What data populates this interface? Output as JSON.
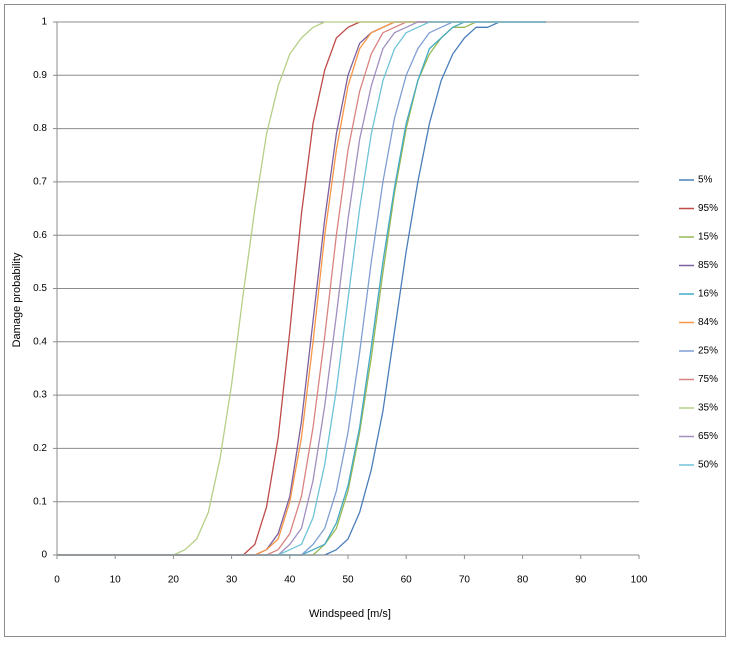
{
  "chart_data": {
    "type": "line",
    "x_label": "Windspeed [m/s]",
    "y_label": "Damage probability",
    "x": [
      0,
      2,
      4,
      6,
      8,
      10,
      12,
      14,
      16,
      18,
      20,
      22,
      24,
      26,
      28,
      30,
      32,
      34,
      36,
      38,
      40,
      42,
      44,
      46,
      48,
      50,
      52,
      54,
      56,
      58,
      60,
      62,
      64,
      66,
      68,
      70,
      72,
      74,
      76,
      78,
      80,
      82,
      84
    ],
    "xlim": [
      0,
      100
    ],
    "xticks": [
      0,
      10,
      20,
      30,
      40,
      50,
      60,
      70,
      80,
      90,
      100
    ],
    "ylim": [
      0,
      1
    ],
    "yticks": [
      0,
      0.1,
      0.2,
      0.3,
      0.4,
      0.5,
      0.6,
      0.7,
      0.8,
      0.9,
      1
    ],
    "grid": true,
    "legend": "right",
    "series": [
      {
        "name": "5%",
        "color": "#4a7ebb",
        "values": [
          0,
          0,
          0,
          0,
          0,
          0,
          0,
          0,
          0,
          0,
          0,
          0,
          0,
          0,
          0,
          0,
          0,
          0,
          0,
          0,
          0,
          0,
          0,
          0,
          0.01,
          0.03,
          0.08,
          0.16,
          0.27,
          0.42,
          0.57,
          0.7,
          0.81,
          0.89,
          0.94,
          0.97,
          0.99,
          0.99,
          1,
          1,
          1,
          1,
          1
        ]
      },
      {
        "name": "95%",
        "color": "#be4b48",
        "values": [
          0,
          0,
          0,
          0,
          0,
          0,
          0,
          0,
          0,
          0,
          0,
          0,
          0,
          0,
          0,
          0,
          0,
          0.02,
          0.09,
          0.22,
          0.42,
          0.64,
          0.81,
          0.91,
          0.97,
          0.99,
          1,
          1,
          1,
          1,
          1,
          1,
          1,
          1,
          1,
          1,
          1,
          1,
          1,
          1,
          1,
          1,
          1
        ]
      },
      {
        "name": "15%",
        "color": "#98b954",
        "values": [
          0,
          0,
          0,
          0,
          0,
          0,
          0,
          0,
          0,
          0,
          0,
          0,
          0,
          0,
          0,
          0,
          0,
          0,
          0,
          0,
          0,
          0,
          0,
          0.02,
          0.05,
          0.12,
          0.23,
          0.37,
          0.53,
          0.68,
          0.8,
          0.89,
          0.94,
          0.97,
          0.99,
          0.99,
          1,
          1,
          1,
          1,
          1,
          1,
          1
        ]
      },
      {
        "name": "85%",
        "color": "#7d60a0",
        "values": [
          0,
          0,
          0,
          0,
          0,
          0,
          0,
          0,
          0,
          0,
          0,
          0,
          0,
          0,
          0,
          0,
          0,
          0,
          0.01,
          0.04,
          0.11,
          0.25,
          0.44,
          0.63,
          0.79,
          0.9,
          0.96,
          0.98,
          0.99,
          1,
          1,
          1,
          1,
          1,
          1,
          1,
          1,
          1,
          1,
          1,
          1,
          1,
          1
        ]
      },
      {
        "name": "16%",
        "color": "#46aac5",
        "values": [
          0,
          0,
          0,
          0,
          0,
          0,
          0,
          0,
          0,
          0,
          0,
          0,
          0,
          0,
          0,
          0,
          0,
          0,
          0,
          0,
          0,
          0,
          0.01,
          0.02,
          0.06,
          0.13,
          0.24,
          0.39,
          0.55,
          0.69,
          0.81,
          0.89,
          0.95,
          0.97,
          0.99,
          1,
          1,
          1,
          1,
          1,
          1,
          1,
          1
        ]
      },
      {
        "name": "84%",
        "color": "#f79646",
        "values": [
          0,
          0,
          0,
          0,
          0,
          0,
          0,
          0,
          0,
          0,
          0,
          0,
          0,
          0,
          0,
          0,
          0,
          0,
          0.01,
          0.03,
          0.1,
          0.22,
          0.4,
          0.6,
          0.76,
          0.88,
          0.95,
          0.98,
          0.99,
          1,
          1,
          1,
          1,
          1,
          1,
          1,
          1,
          1,
          1,
          1,
          1,
          1,
          1
        ]
      },
      {
        "name": "25%",
        "color": "#7f9fd3",
        "values": [
          0,
          0,
          0,
          0,
          0,
          0,
          0,
          0,
          0,
          0,
          0,
          0,
          0,
          0,
          0,
          0,
          0,
          0,
          0,
          0,
          0,
          0,
          0.02,
          0.05,
          0.12,
          0.23,
          0.38,
          0.55,
          0.7,
          0.82,
          0.9,
          0.95,
          0.98,
          0.99,
          1,
          1,
          1,
          1,
          1,
          1,
          1,
          1,
          1
        ]
      },
      {
        "name": "75%",
        "color": "#d98381",
        "values": [
          0,
          0,
          0,
          0,
          0,
          0,
          0,
          0,
          0,
          0,
          0,
          0,
          0,
          0,
          0,
          0,
          0,
          0,
          0,
          0.01,
          0.04,
          0.11,
          0.24,
          0.41,
          0.6,
          0.76,
          0.87,
          0.94,
          0.98,
          0.99,
          1,
          1,
          1,
          1,
          1,
          1,
          1,
          1,
          1,
          1,
          1,
          1,
          1
        ]
      },
      {
        "name": "35%",
        "color": "#b5cf86",
        "values": [
          0,
          0,
          0,
          0,
          0,
          0,
          0,
          0,
          0,
          0,
          0,
          0.01,
          0.03,
          0.08,
          0.18,
          0.32,
          0.49,
          0.65,
          0.79,
          0.88,
          0.94,
          0.97,
          0.99,
          1,
          1,
          1,
          1,
          1,
          1,
          1,
          1,
          1,
          1,
          1,
          1,
          1,
          1,
          1,
          1,
          1,
          1,
          1,
          1
        ]
      },
      {
        "name": "65%",
        "color": "#a08fbf",
        "values": [
          0,
          0,
          0,
          0,
          0,
          0,
          0,
          0,
          0,
          0,
          0,
          0,
          0,
          0,
          0,
          0,
          0,
          0,
          0,
          0,
          0.02,
          0.05,
          0.14,
          0.28,
          0.45,
          0.63,
          0.78,
          0.88,
          0.95,
          0.98,
          0.99,
          1,
          1,
          1,
          1,
          1,
          1,
          1,
          1,
          1,
          1,
          1,
          1
        ]
      },
      {
        "name": "50%",
        "color": "#6fc3d8",
        "values": [
          0,
          0,
          0,
          0,
          0,
          0,
          0,
          0,
          0,
          0,
          0,
          0,
          0,
          0,
          0,
          0,
          0,
          0,
          0,
          0,
          0.01,
          0.02,
          0.07,
          0.17,
          0.31,
          0.48,
          0.65,
          0.79,
          0.89,
          0.95,
          0.98,
          0.99,
          1,
          1,
          1,
          1,
          1,
          1,
          1,
          1,
          1,
          1,
          1
        ]
      }
    ]
  }
}
